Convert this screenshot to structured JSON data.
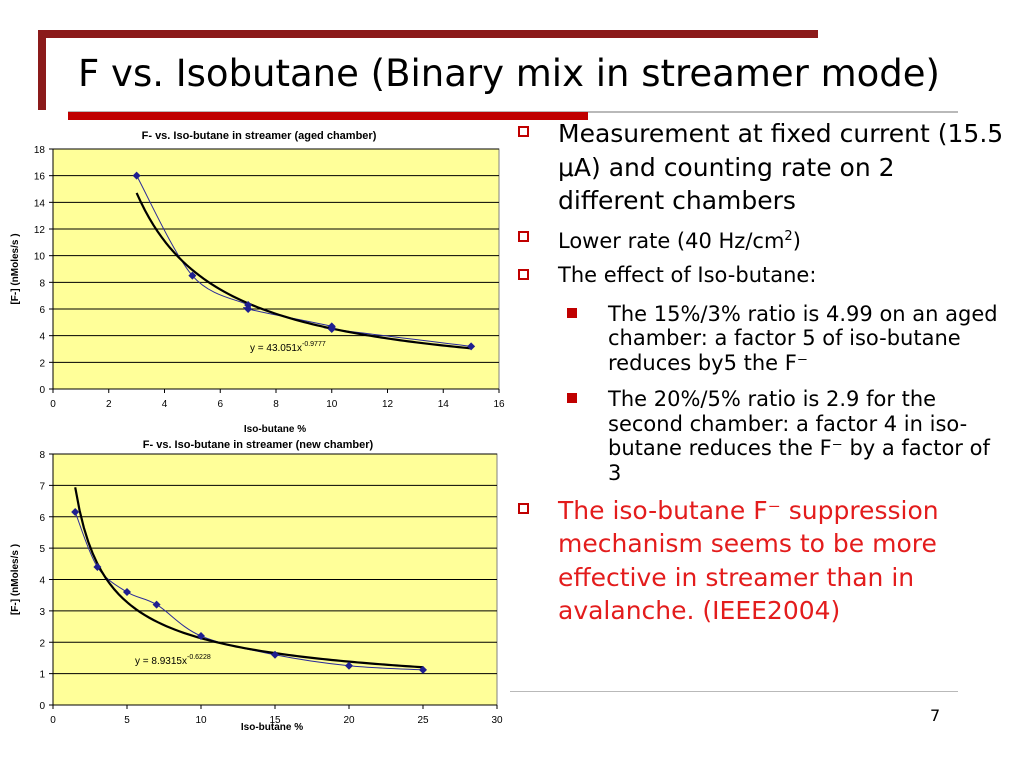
{
  "slide": {
    "title": "F vs. Isobutane (Binary mix in streamer mode)",
    "page_number": "7",
    "bullets": [
      {
        "text": "Measurement at fixed current (15.5 μA) and counting rate on 2 different chambers"
      },
      {
        "text": "Lower rate (40 Hz/cm",
        "sup": "2",
        "after": ")"
      },
      {
        "text": "The effect of Iso-butane:"
      }
    ],
    "sub_bullets": [
      {
        "text": "The 15%/3% ratio is 4.99 on an aged chamber: a factor 5 of iso-butane reduces by5 the F⁻"
      },
      {
        "text": "The 20%/5% ratio is 2.9 for the second chamber: a factor 4 in iso-butane reduces the F⁻ by a factor of 3"
      }
    ],
    "conclusion": "The iso-butane F⁻ suppression mechanism seems to be more effective in streamer than in avalanche. (IEEE2004)"
  },
  "colors": {
    "frame": "#8b1a1a",
    "accent_red": "#c00000",
    "plot_bg": "#ffff99",
    "marker": "#1f1f8f",
    "conclusion_text": "#e31c1c"
  },
  "chart_data": [
    {
      "type": "scatter",
      "title": "F- vs. Iso-butane in streamer (aged chamber)",
      "xlabel": "Iso-butane %",
      "ylabel": "[F-] (nMoles/s )",
      "xlim": [
        0,
        16
      ],
      "ylim": [
        0,
        18
      ],
      "xticks": [
        0,
        2,
        4,
        6,
        8,
        10,
        12,
        14,
        16
      ],
      "yticks": [
        0,
        2,
        4,
        6,
        8,
        10,
        12,
        14,
        16,
        18
      ],
      "grid": true,
      "points": [
        [
          3,
          16
        ],
        [
          5,
          8.5
        ],
        [
          7,
          6.3
        ],
        [
          7,
          6
        ],
        [
          10,
          4.7
        ],
        [
          10,
          4.5
        ],
        [
          15,
          3.2
        ]
      ],
      "trendline": {
        "type": "power",
        "a": 43.051,
        "b": -0.9777,
        "x_range": [
          3,
          15
        ]
      },
      "equation": "y = 43.051x",
      "equation_exp": "-0.9777"
    },
    {
      "type": "scatter",
      "title": "F- vs. Iso-butane in streamer (new chamber)",
      "xlabel": "Iso-butane %",
      "ylabel": "[F-] (nMoles/s )",
      "xlim": [
        0,
        30
      ],
      "ylim": [
        0,
        8
      ],
      "xticks": [
        0,
        5,
        10,
        15,
        20,
        25,
        30
      ],
      "yticks": [
        0,
        1,
        2,
        3,
        4,
        5,
        6,
        7,
        8
      ],
      "grid": true,
      "points": [
        [
          1.5,
          6.15
        ],
        [
          3,
          4.4
        ],
        [
          5,
          3.6
        ],
        [
          7,
          3.2
        ],
        [
          10,
          2.2
        ],
        [
          15,
          1.6
        ],
        [
          20,
          1.25
        ],
        [
          25,
          1.12
        ]
      ],
      "trendline": {
        "type": "power",
        "a": 8.9315,
        "b": -0.6228,
        "x_range": [
          1.5,
          25
        ]
      },
      "equation": "y = 8.9315x",
      "equation_exp": "-0.6228"
    }
  ]
}
